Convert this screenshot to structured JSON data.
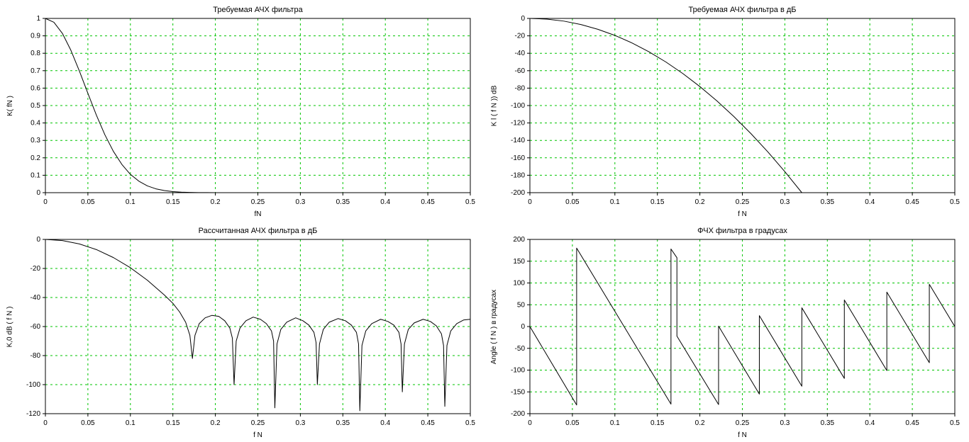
{
  "page": {
    "background": "#ffffff",
    "grid_color": "#00c400",
    "axis_color": "#000000",
    "curve_color": "#000000"
  },
  "chart_data": [
    {
      "id": "required-magnitude-response",
      "type": "line",
      "title": "Требуемая АЧХ фильтра",
      "xlabel": "fN",
      "ylabel": "K( fN )",
      "xlim": [
        0,
        0.5
      ],
      "ylim": [
        0,
        1
      ],
      "grid": true,
      "legend": "none",
      "xticks": [
        0,
        0.05,
        0.1,
        0.15,
        0.2,
        0.25,
        0.3,
        0.35,
        0.4,
        0.45,
        0.5
      ],
      "xtick_labels": [
        "0",
        "0.05",
        "0.1",
        "0.15",
        "0.2",
        "0.25",
        "0.3",
        "0.35",
        "0.4",
        "0.45",
        "0.5"
      ],
      "yticks": [
        1,
        0.9,
        0.8,
        0.7,
        0.6,
        0.5,
        0.4,
        0.3,
        0.2,
        0.1,
        0
      ],
      "ytick_labels": [
        "1",
        "0.9",
        "0.8",
        "0.7",
        "0.6",
        "0.5",
        "0.4",
        "0.3",
        "0.2",
        "0.1",
        "0"
      ],
      "points": [
        [
          0,
          1
        ],
        [
          0.01,
          0.978
        ],
        [
          0.02,
          0.914
        ],
        [
          0.03,
          0.817
        ],
        [
          0.04,
          0.698
        ],
        [
          0.05,
          0.57
        ],
        [
          0.06,
          0.445
        ],
        [
          0.07,
          0.332
        ],
        [
          0.08,
          0.237
        ],
        [
          0.09,
          0.162
        ],
        [
          0.1,
          0.105
        ],
        [
          0.11,
          0.066
        ],
        [
          0.12,
          0.039
        ],
        [
          0.13,
          0.022
        ],
        [
          0.14,
          0.012
        ],
        [
          0.15,
          0.006
        ],
        [
          0.16,
          0.003
        ],
        [
          0.17,
          0.0015
        ],
        [
          0.18,
          0.0007
        ],
        [
          0.19,
          0.0003
        ],
        [
          0.2,
          0.0001
        ],
        [
          0.25,
          0
        ],
        [
          0.3,
          0
        ],
        [
          0.35,
          0
        ],
        [
          0.4,
          0
        ],
        [
          0.45,
          0
        ],
        [
          0.5,
          0
        ]
      ]
    },
    {
      "id": "required-magnitude-response-db",
      "type": "line",
      "title": "Требуемая АЧХ фильтра в дБ",
      "xlabel": "f N",
      "ylabel": "K l ( f N )) dB",
      "xlim": [
        0,
        0.5
      ],
      "ylim": [
        -200,
        0
      ],
      "grid": true,
      "legend": "none",
      "xticks": [
        0,
        0.05,
        0.1,
        0.15,
        0.2,
        0.25,
        0.3,
        0.35,
        0.4,
        0.45,
        0.5
      ],
      "xtick_labels": [
        "0",
        "0.05",
        "0.1",
        "0.15",
        "0.2",
        "0.25",
        "0.3",
        "0.35",
        "0.4",
        "0.45",
        "0.5"
      ],
      "yticks": [
        0,
        -20,
        -40,
        -60,
        -80,
        -100,
        -120,
        -140,
        -160,
        -180,
        -200
      ],
      "ytick_labels": [
        "0",
        "-20",
        "-40",
        "-60",
        "-80",
        "-100",
        "-120",
        "-140",
        "-160",
        "-180",
        "-200"
      ],
      "points": [
        [
          0,
          0
        ],
        [
          0.02,
          -0.8
        ],
        [
          0.04,
          -3.1
        ],
        [
          0.06,
          -7.0
        ],
        [
          0.08,
          -12.5
        ],
        [
          0.1,
          -19.5
        ],
        [
          0.12,
          -28.1
        ],
        [
          0.14,
          -38.3
        ],
        [
          0.16,
          -50.0
        ],
        [
          0.18,
          -63.3
        ],
        [
          0.2,
          -78.2
        ],
        [
          0.22,
          -94.6
        ],
        [
          0.24,
          -112.6
        ],
        [
          0.26,
          -132.1
        ],
        [
          0.28,
          -153.2
        ],
        [
          0.3,
          -175.9
        ],
        [
          0.32,
          -200
        ]
      ]
    },
    {
      "id": "computed-magnitude-response-db",
      "type": "line",
      "title": "Рассчитанная АЧХ фильтра в дБ",
      "xlabel": "f N",
      "ylabel": "K,0 dB ( f N )",
      "xlim": [
        0,
        0.5
      ],
      "ylim": [
        -120,
        0
      ],
      "grid": true,
      "legend": "none",
      "xticks": [
        0,
        0.05,
        0.1,
        0.15,
        0.2,
        0.25,
        0.3,
        0.35,
        0.4,
        0.45,
        0.5
      ],
      "xtick_labels": [
        "0",
        "0.05",
        "0.1",
        "0.15",
        "0.2",
        "0.25",
        "0.3",
        "0.35",
        "0.4",
        "0.45",
        "0.5"
      ],
      "yticks": [
        0,
        -20,
        -40,
        -60,
        -80,
        -100,
        -120
      ],
      "ytick_labels": [
        "0",
        "-20",
        "-40",
        "-60",
        "-80",
        "-100",
        "-120"
      ],
      "points": [
        [
          0,
          0
        ],
        [
          0.02,
          -0.8
        ],
        [
          0.04,
          -3.1
        ],
        [
          0.06,
          -7.0
        ],
        [
          0.08,
          -12.5
        ],
        [
          0.1,
          -19.5
        ],
        [
          0.12,
          -28.1
        ],
        [
          0.14,
          -38.3
        ],
        [
          0.15,
          -44
        ],
        [
          0.158,
          -50
        ],
        [
          0.165,
          -57
        ],
        [
          0.17,
          -66
        ],
        [
          0.173,
          -82
        ],
        [
          0.176,
          -66
        ],
        [
          0.181,
          -58
        ],
        [
          0.188,
          -54
        ],
        [
          0.196,
          -52.3
        ],
        [
          0.204,
          -53
        ],
        [
          0.211,
          -56
        ],
        [
          0.217,
          -61
        ],
        [
          0.22,
          -68
        ],
        [
          0.222,
          -100
        ],
        [
          0.2245,
          -70
        ],
        [
          0.229,
          -61
        ],
        [
          0.236,
          -56
        ],
        [
          0.2445,
          -53.5
        ],
        [
          0.253,
          -55
        ],
        [
          0.26,
          -58
        ],
        [
          0.266,
          -63
        ],
        [
          0.2685,
          -70
        ],
        [
          0.27,
          -116
        ],
        [
          0.2725,
          -72
        ],
        [
          0.277,
          -62
        ],
        [
          0.284,
          -57
        ],
        [
          0.2945,
          -54
        ],
        [
          0.303,
          -56
        ],
        [
          0.31,
          -59
        ],
        [
          0.316,
          -64
        ],
        [
          0.3185,
          -71
        ],
        [
          0.32,
          -100
        ],
        [
          0.3225,
          -72
        ],
        [
          0.327,
          -62
        ],
        [
          0.334,
          -57
        ],
        [
          0.3445,
          -54.5
        ],
        [
          0.353,
          -56
        ],
        [
          0.36,
          -59
        ],
        [
          0.366,
          -64
        ],
        [
          0.3685,
          -72
        ],
        [
          0.37,
          -118
        ],
        [
          0.3725,
          -73
        ],
        [
          0.377,
          -63
        ],
        [
          0.384,
          -58
        ],
        [
          0.3945,
          -55
        ],
        [
          0.403,
          -56.5
        ],
        [
          0.41,
          -59
        ],
        [
          0.416,
          -64
        ],
        [
          0.4185,
          -72
        ],
        [
          0.42,
          -105
        ],
        [
          0.4225,
          -72
        ],
        [
          0.427,
          -62
        ],
        [
          0.434,
          -57.5
        ],
        [
          0.4445,
          -55
        ],
        [
          0.453,
          -56.5
        ],
        [
          0.46,
          -59.5
        ],
        [
          0.466,
          -65
        ],
        [
          0.4685,
          -73
        ],
        [
          0.47,
          -115
        ],
        [
          0.4725,
          -73
        ],
        [
          0.477,
          -63
        ],
        [
          0.484,
          -58
        ],
        [
          0.492,
          -55.5
        ],
        [
          0.5,
          -55
        ]
      ]
    },
    {
      "id": "phase-response-degrees",
      "type": "line",
      "title": "ФЧХ фильтра в градусах",
      "xlabel": "f N",
      "ylabel": "Angle ( f N ) в градусах",
      "xlim": [
        0,
        0.5
      ],
      "ylim": [
        -200,
        200
      ],
      "grid": true,
      "legend": "none",
      "xticks": [
        0,
        0.05,
        0.1,
        0.15,
        0.2,
        0.25,
        0.3,
        0.35,
        0.4,
        0.45,
        0.5
      ],
      "xtick_labels": [
        "0",
        "0.05",
        "0.1",
        "0.15",
        "0.2",
        "0.25",
        "0.3",
        "0.35",
        "0.4",
        "0.45",
        "0.5"
      ],
      "yticks": [
        200,
        150,
        100,
        50,
        0,
        -50,
        -100,
        -150,
        -200
      ],
      "ytick_labels": [
        "200",
        "150",
        "100",
        "50",
        "0",
        "-50",
        "-100",
        "-150",
        "-200"
      ],
      "points": [
        [
          0,
          0
        ],
        [
          0.055,
          -180
        ],
        [
          0.055,
          180
        ],
        [
          0.166,
          -178
        ],
        [
          0.166,
          178
        ],
        [
          0.173,
          158
        ],
        [
          0.173,
          -22
        ],
        [
          0.222,
          -179
        ],
        [
          0.222,
          1
        ],
        [
          0.27,
          -155
        ],
        [
          0.27,
          25
        ],
        [
          0.32,
          -137
        ],
        [
          0.32,
          43
        ],
        [
          0.37,
          -119
        ],
        [
          0.37,
          61
        ],
        [
          0.42,
          -101
        ],
        [
          0.42,
          79
        ],
        [
          0.47,
          -83
        ],
        [
          0.47,
          97
        ],
        [
          0.5,
          0
        ]
      ]
    }
  ]
}
